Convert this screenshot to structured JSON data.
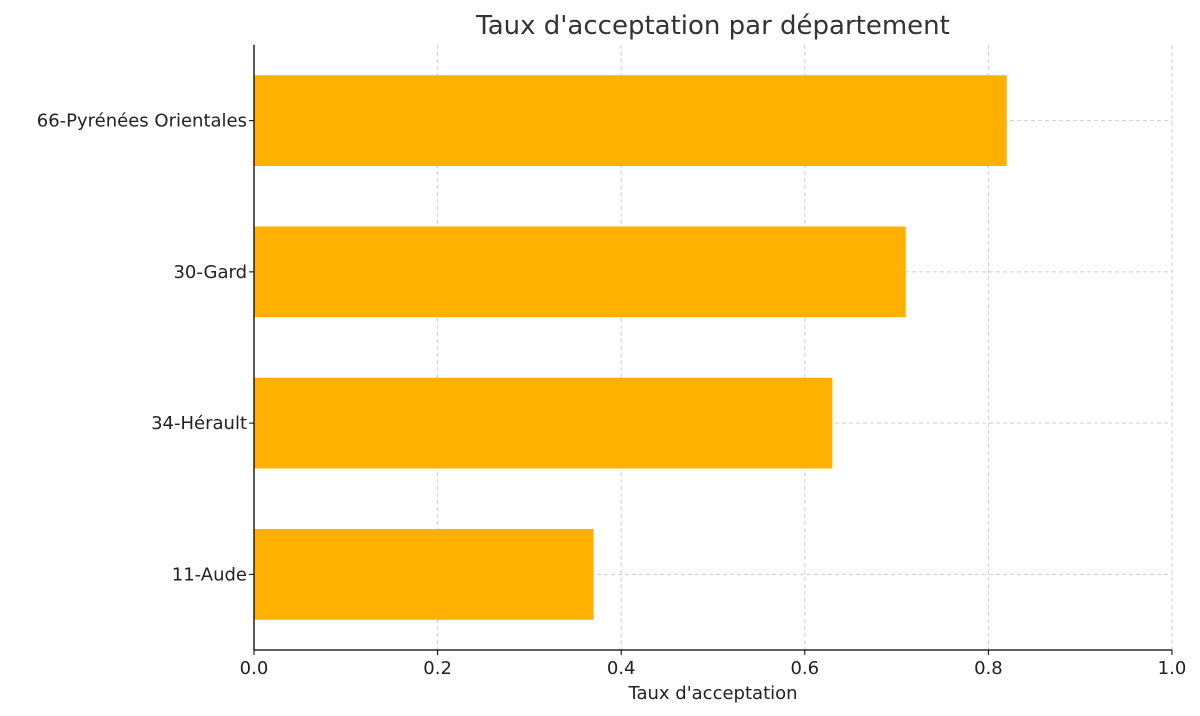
{
  "chart_data": {
    "type": "bar",
    "orientation": "horizontal",
    "title": "Taux d'acceptation par département",
    "xlabel": "Taux d'acceptation",
    "ylabel": "",
    "categories": [
      "66-Pyrénées Orientales",
      "30-Gard",
      "34-Hérault",
      "11-Aude"
    ],
    "values": [
      0.82,
      0.71,
      0.63,
      0.37
    ],
    "xlim": [
      0.0,
      1.0
    ],
    "x_ticks": [
      "0.0",
      "0.2",
      "0.4",
      "0.6",
      "0.8",
      "1.0"
    ],
    "grid": true,
    "bar_color": "#FFB000",
    "grid_color": "#cfcfcf",
    "legend": "none"
  }
}
